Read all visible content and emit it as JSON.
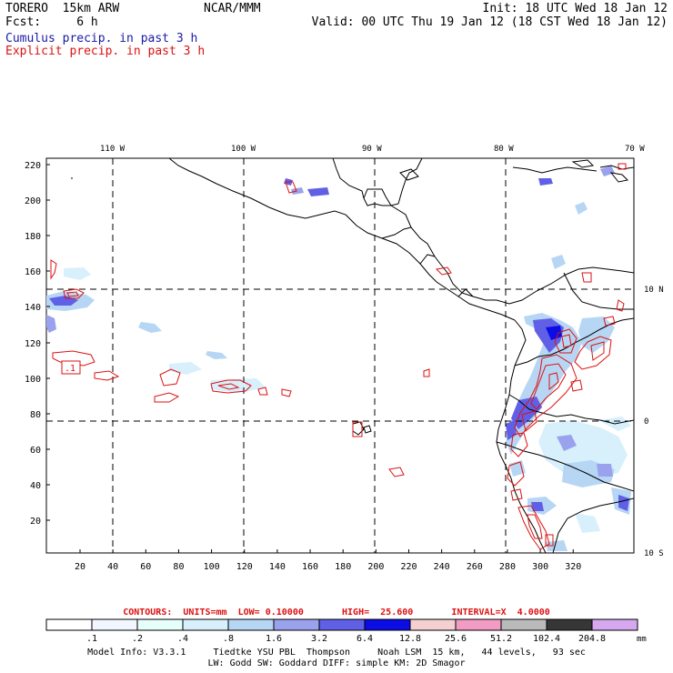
{
  "header": {
    "model_line": "TORERO  15km ARW",
    "fcst_line": "Fcst:     6 h",
    "center": "NCAR/MMM",
    "init": "Init: 18 UTC Wed 18 Jan 12",
    "valid": "Valid: 00 UTC Thu 19 Jan 12 (18 CST Wed 18 Jan 12)",
    "field1": "Cumulus precip. in past 3 h",
    "field2": "Explicit precip. in past 3 h",
    "field1_color": "#1a1aa6",
    "field2_color": "#dd1111"
  },
  "map": {
    "lon_labels": [
      "110 W",
      "100 W",
      "90 W",
      "80 W",
      "70 W"
    ],
    "lat_labels": [
      "10 N",
      "0",
      "10 S"
    ],
    "y_ticks": [
      "220",
      "200",
      "180",
      "160",
      "140",
      "120",
      "100",
      "80",
      "60",
      "40",
      "20"
    ],
    "x_ticks": [
      "20",
      "40",
      "60",
      "80",
      "100",
      "120",
      "140",
      "160",
      "180",
      "200",
      "220",
      "240",
      "260",
      "280",
      "300",
      "320"
    ],
    "contour_label": ".1",
    "contour_color": "#dd1111"
  },
  "legend": {
    "contours_line": "CONTOURS:  UNITS=mm  LOW= 0.10000       HIGH=  25.600       INTERVAL=X  4.0000",
    "bins": [
      "#ffffff",
      "#f2f6ff",
      "#e6fffa",
      "#d8f0fc",
      "#b6d6f4",
      "#9aa2ee",
      "#6060e6",
      "#0c0ce4",
      "#f4d0d0",
      "#f29cc4",
      "#bababa",
      "#363636",
      "#d6a8f0"
    ],
    "labels": [
      ".1",
      ".2",
      ".4",
      ".8",
      "1.6",
      "3.2",
      "6.4",
      "12.8",
      "25.6",
      "51.2",
      "102.4",
      "204.8"
    ],
    "unit": "mm"
  },
  "footer": {
    "line1": "Model Info: V3.3.1     Tiedtke YSU PBL  Thompson     Noah LSM  15 km,   44 levels,   93 sec",
    "line2": "LW: Godd SW: Goddard DIFF: simple KM: 2D Smagor"
  }
}
